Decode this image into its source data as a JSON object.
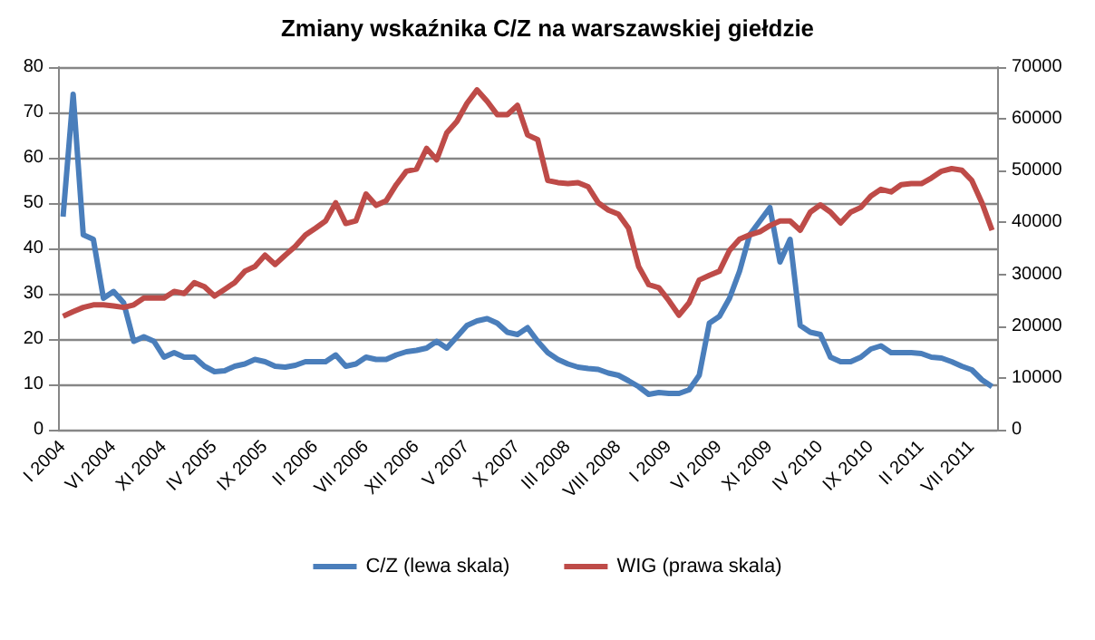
{
  "chart_data": {
    "type": "line",
    "title": "Zmiany wskaźnika C/Z na warszawskiej giełdzie",
    "categories": [
      "I 2004",
      null,
      null,
      null,
      null,
      "VI 2004",
      null,
      null,
      null,
      null,
      "XI 2004",
      null,
      null,
      null,
      null,
      "IV 2005",
      null,
      null,
      null,
      null,
      "IX 2005",
      null,
      null,
      null,
      null,
      "II 2006",
      null,
      null,
      null,
      null,
      "VII 2006",
      null,
      null,
      null,
      null,
      "XII 2006",
      null,
      null,
      null,
      null,
      "V 2007",
      null,
      null,
      null,
      null,
      "X 2007",
      null,
      null,
      null,
      null,
      "III 2008",
      null,
      null,
      null,
      null,
      "VIII 2008",
      null,
      null,
      null,
      null,
      "I 2009",
      null,
      null,
      null,
      null,
      "VI 2009",
      null,
      null,
      null,
      null,
      "XI 2009",
      null,
      null,
      null,
      null,
      "IV 2010",
      null,
      null,
      null,
      null,
      "IX 2010",
      null,
      null,
      null,
      null,
      "II 2011",
      null,
      null,
      null,
      null,
      "VII 2011",
      null,
      null
    ],
    "series": [
      {
        "name": "C/Z (lewa skala)",
        "color": "#4a7ebb",
        "values": [
          47,
          74,
          43,
          42,
          29,
          30.5,
          28,
          19.5,
          20.5,
          19.5,
          16,
          17,
          16,
          16,
          14,
          12.8,
          13,
          14,
          14.5,
          15.5,
          15,
          14,
          13.8,
          14.2,
          15,
          15,
          15,
          16.5,
          14,
          14.5,
          16,
          15.5,
          15.5,
          16.5,
          17.2,
          17.5,
          18,
          19.5,
          18,
          20.5,
          23,
          24,
          24.5,
          23.5,
          21.5,
          21,
          22.5,
          19.5,
          17,
          15.5,
          14.5,
          13.8,
          13.5,
          13.3,
          12.5,
          12,
          10.8,
          9.5,
          7.8,
          8.2,
          8,
          8,
          8.8,
          12,
          23.5,
          25,
          29,
          35,
          43,
          46,
          49,
          37,
          42,
          23,
          21.5,
          21,
          16,
          15,
          15,
          16,
          17.8,
          18.5,
          17,
          17,
          17,
          16.8,
          16,
          15.8,
          15,
          14,
          13.2,
          11,
          9.5
        ]
      },
      {
        "name": "WIG (prawa skala)",
        "color": "#be4b48",
        "axis": "y2",
        "values": [
          21900,
          22800,
          23600,
          24100,
          24100,
          23900,
          23600,
          24100,
          25400,
          25400,
          25400,
          26700,
          26300,
          28400,
          27600,
          25800,
          27100,
          28400,
          30600,
          31500,
          33700,
          31900,
          33700,
          35400,
          37600,
          38900,
          40300,
          43800,
          39800,
          40300,
          45500,
          43300,
          44200,
          47300,
          49900,
          50300,
          54300,
          52100,
          57300,
          59500,
          63000,
          65600,
          63400,
          60800,
          60800,
          62600,
          56900,
          56000,
          48100,
          47700,
          47500,
          47700,
          46900,
          43800,
          42400,
          41600,
          38900,
          31500,
          28000,
          27400,
          24900,
          22100,
          24500,
          28900,
          29800,
          30600,
          34600,
          36800,
          37600,
          38200,
          39400,
          40300,
          40300,
          38500,
          42000,
          43400,
          42000,
          39900,
          42000,
          42900,
          45100,
          46400,
          45900,
          47300,
          47500,
          47500,
          48600,
          49900,
          50400,
          50100,
          48100,
          43800,
          38500
        ]
      }
    ],
    "ylim": [
      0,
      80
    ],
    "yticks": [
      0,
      10,
      20,
      30,
      40,
      50,
      60,
      70,
      80
    ],
    "y2lim": [
      0,
      70000
    ],
    "y2ticks": [
      0,
      10000,
      20000,
      30000,
      40000,
      50000,
      60000,
      70000
    ],
    "grid": "y",
    "legend": "bottom",
    "marker": "none",
    "line_style": "solid"
  }
}
